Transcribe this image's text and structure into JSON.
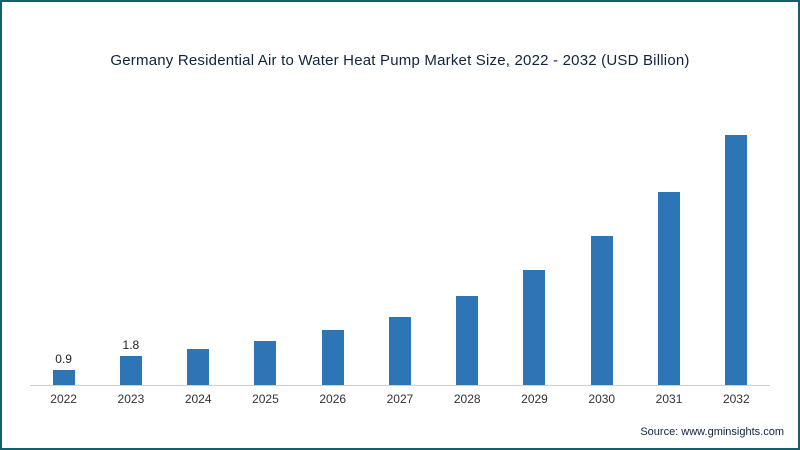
{
  "title": "Germany Residential Air to Water Heat Pump Market Size, 2022 - 2032 (USD Billion)",
  "source": "Source: www.gminsights.com",
  "colors": {
    "bar": "#2e75b6",
    "frame_border": "#12606b",
    "axis": "#cfcfcf",
    "title_text": "#10243e"
  },
  "chart_data": {
    "type": "bar",
    "title": "Germany Residential Air to Water Heat Pump Market Size, 2022 - 2032 (USD Billion)",
    "categories": [
      "2022",
      "2023",
      "2024",
      "2025",
      "2026",
      "2027",
      "2028",
      "2029",
      "2030",
      "2031",
      "2032"
    ],
    "values": [
      0.9,
      1.8,
      2.2,
      2.7,
      3.4,
      4.2,
      5.5,
      7.1,
      9.2,
      11.9,
      15.4
    ],
    "data_labels": [
      "0.9",
      "1.8",
      "",
      "",
      "",
      "",
      "",
      "",
      "",
      "",
      ""
    ],
    "xlabel": "",
    "ylabel": "",
    "ylim": [
      0,
      16.5
    ],
    "grid": false,
    "legend": false,
    "bar_color": "#2e75b6"
  }
}
